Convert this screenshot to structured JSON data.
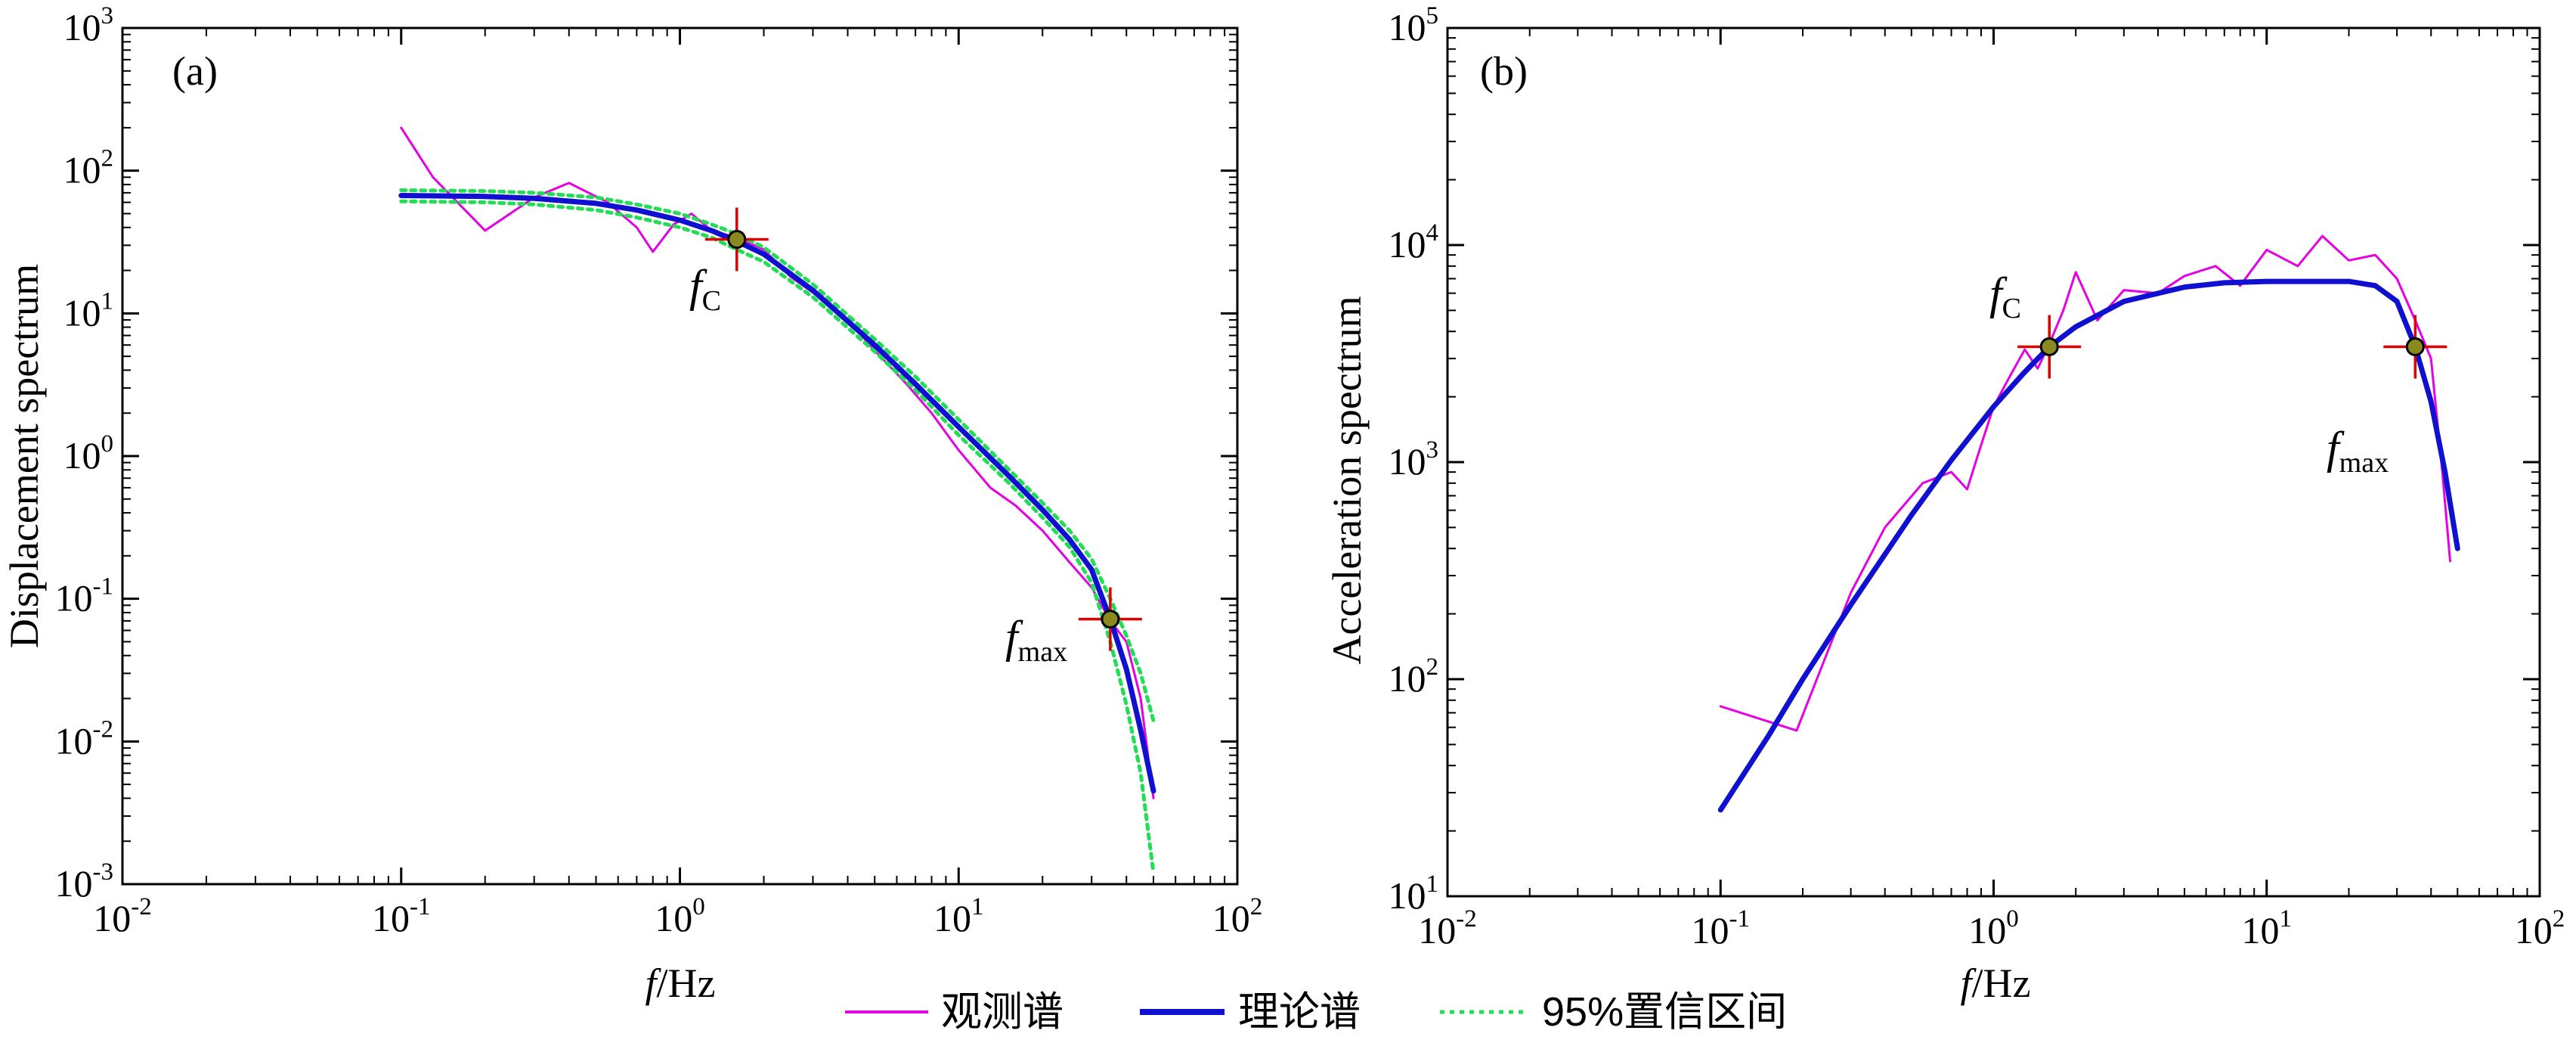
{
  "legend": [
    {
      "label": "观测谱",
      "color": "#e600e6",
      "style": "solid-thin"
    },
    {
      "label": "理论谱",
      "color": "#1010d0",
      "style": "solid-thick"
    },
    {
      "label": "95%置信区间",
      "color": "#22dd55",
      "style": "dotted"
    }
  ],
  "chart_data": [
    {
      "type": "line",
      "panel_label": "(a)",
      "xlabel_italic": "f",
      "xlabel_rest": "/Hz",
      "ylabel": "Displacement spectrum",
      "xscale": "log",
      "yscale": "log",
      "xlim": [
        0.01,
        100
      ],
      "ylim": [
        0.001,
        1000
      ],
      "xticks": [
        {
          "base": "10",
          "exp": "-2"
        },
        {
          "base": "10",
          "exp": "-1"
        },
        {
          "base": "10",
          "exp": "0"
        },
        {
          "base": "10",
          "exp": "1"
        },
        {
          "base": "10",
          "exp": "2"
        }
      ],
      "yticks": [
        {
          "base": "10",
          "exp": "-3"
        },
        {
          "base": "10",
          "exp": "-2"
        },
        {
          "base": "10",
          "exp": "-1"
        },
        {
          "base": "10",
          "exp": "0"
        },
        {
          "base": "10",
          "exp": "1"
        },
        {
          "base": "10",
          "exp": "2"
        },
        {
          "base": "10",
          "exp": "3"
        }
      ],
      "series": [
        {
          "name": "观测谱",
          "x": [
            0.1,
            0.13,
            0.2,
            0.3,
            0.4,
            0.55,
            0.7,
            0.8,
            0.95,
            1.1,
            1.3,
            1.6,
            2.0,
            2.5,
            3.0,
            4.0,
            5.0,
            6.5,
            8.0,
            10,
            13,
            16,
            20,
            25,
            30,
            35,
            40,
            45,
            50
          ],
          "y": [
            200,
            90,
            38,
            65,
            82,
            60,
            40,
            27,
            42,
            50,
            38,
            34,
            28,
            18,
            14,
            9,
            5.5,
            3.2,
            2.0,
            1.1,
            0.6,
            0.45,
            0.3,
            0.18,
            0.12,
            0.07,
            0.05,
            0.02,
            0.004
          ]
        },
        {
          "name": "理论谱",
          "x": [
            0.1,
            0.2,
            0.3,
            0.5,
            0.7,
            1.0,
            1.3,
            1.6,
            2.0,
            3.0,
            5.0,
            7.0,
            10,
            15,
            20,
            25,
            30,
            35,
            40,
            45,
            50
          ],
          "y": [
            67,
            66,
            64,
            59,
            53,
            45,
            38,
            32,
            26,
            14.5,
            6.0,
            3.2,
            1.6,
            0.74,
            0.42,
            0.26,
            0.16,
            0.072,
            0.032,
            0.012,
            0.0045
          ]
        },
        {
          "name": "95%置信区间",
          "x": [
            0.1,
            0.2,
            0.3,
            0.5,
            0.7,
            1.0,
            1.3,
            1.6,
            2.0,
            3.0,
            5.0,
            7.0,
            10,
            15,
            20,
            25,
            30,
            35,
            40,
            45,
            50
          ],
          "y": [
            73,
            72,
            70,
            65,
            58,
            50,
            42,
            36,
            29,
            16,
            6.6,
            3.6,
            1.8,
            0.82,
            0.47,
            0.3,
            0.19,
            0.1,
            0.055,
            0.03,
            0.014
          ]
        },
        {
          "name": "95%置信区间",
          "x": [
            0.1,
            0.2,
            0.3,
            0.5,
            0.7,
            1.0,
            1.3,
            1.6,
            2.0,
            3.0,
            5.0,
            7.0,
            10,
            15,
            20,
            25,
            30,
            35,
            40,
            45,
            50
          ],
          "y": [
            61,
            60,
            58,
            53,
            47,
            40,
            34,
            28,
            23,
            13,
            5.4,
            2.9,
            1.4,
            0.66,
            0.37,
            0.23,
            0.13,
            0.05,
            0.018,
            0.006,
            0.0012
          ]
        }
      ],
      "markers": [
        {
          "name": "fC",
          "x": 1.6,
          "y": 33,
          "main": "f",
          "sub": "C",
          "label_pos": "below-left"
        },
        {
          "name": "fmax",
          "x": 35,
          "y": 0.072,
          "main": "f",
          "sub": "max",
          "label_pos": "left"
        }
      ]
    },
    {
      "type": "line",
      "panel_label": "(b)",
      "xlabel_italic": "f",
      "xlabel_rest": "/Hz",
      "ylabel": "Acceleration spectrum",
      "xscale": "log",
      "yscale": "log",
      "xlim": [
        0.01,
        100
      ],
      "ylim": [
        10,
        100000
      ],
      "xticks": [
        {
          "base": "10",
          "exp": "-2"
        },
        {
          "base": "10",
          "exp": "-1"
        },
        {
          "base": "10",
          "exp": "0"
        },
        {
          "base": "10",
          "exp": "1"
        },
        {
          "base": "10",
          "exp": "2"
        }
      ],
      "yticks": [
        {
          "base": "10",
          "exp": "1"
        },
        {
          "base": "10",
          "exp": "2"
        },
        {
          "base": "10",
          "exp": "3"
        },
        {
          "base": "10",
          "exp": "4"
        },
        {
          "base": "10",
          "exp": "5"
        }
      ],
      "series": [
        {
          "name": "观测谱",
          "x": [
            0.1,
            0.19,
            0.3,
            0.4,
            0.55,
            0.7,
            0.8,
            0.9,
            1.0,
            1.15,
            1.3,
            1.45,
            1.6,
            1.8,
            2.0,
            2.4,
            3.0,
            4.0,
            5.0,
            6.5,
            8.0,
            10,
            13,
            16,
            20,
            25,
            30,
            35,
            40,
            44,
            47
          ],
          "y": [
            75,
            58,
            250,
            500,
            800,
            900,
            750,
            1200,
            1800,
            2500,
            3300,
            2700,
            3500,
            5000,
            7500,
            4500,
            6200,
            6000,
            7200,
            8000,
            6500,
            9500,
            8000,
            11000,
            8500,
            9000,
            7000,
            4500,
            3000,
            900,
            350
          ]
        },
        {
          "name": "理论谱",
          "x": [
            0.1,
            0.15,
            0.2,
            0.3,
            0.5,
            0.7,
            1.0,
            1.3,
            1.6,
            2.0,
            3.0,
            5.0,
            7.0,
            10,
            15,
            20,
            25,
            30,
            35,
            40,
            45,
            50
          ],
          "y": [
            25,
            55,
            100,
            220,
            570,
            1020,
            1800,
            2600,
            3400,
            4200,
            5500,
            6400,
            6700,
            6800,
            6800,
            6800,
            6500,
            5500,
            3400,
            1900,
            900,
            400
          ]
        }
      ],
      "markers": [
        {
          "name": "fC",
          "x": 1.6,
          "y": 3400,
          "main": "f",
          "sub": "C",
          "label_pos": "above-left"
        },
        {
          "name": "fmax",
          "x": 35,
          "y": 3400,
          "main": "f",
          "sub": "max",
          "label_pos": "below-left"
        }
      ]
    }
  ]
}
